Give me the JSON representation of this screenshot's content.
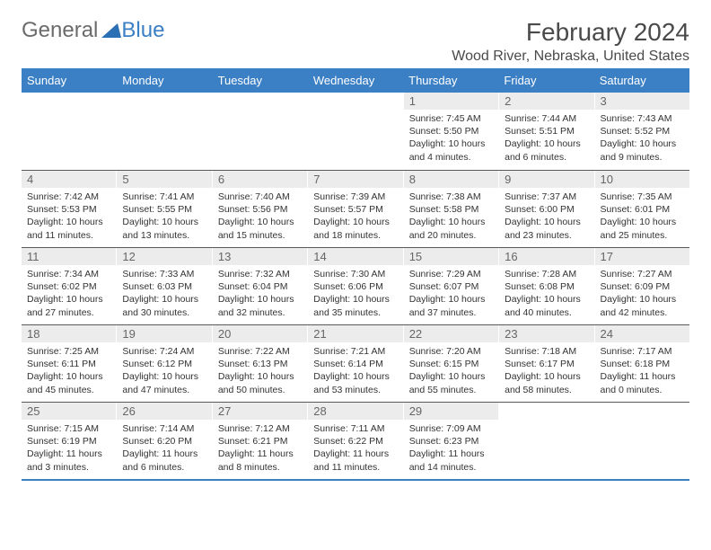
{
  "logo": {
    "text1": "General",
    "text2": "Blue"
  },
  "title": "February 2024",
  "location": "Wood River, Nebraska, United States",
  "colors": {
    "header_bg": "#3b7fc4",
    "header_text": "#ffffff",
    "daynum_bg": "#ececec",
    "daynum_text": "#666666",
    "body_text": "#333333",
    "rule": "#5a5a5a"
  },
  "weekdays": [
    "Sunday",
    "Monday",
    "Tuesday",
    "Wednesday",
    "Thursday",
    "Friday",
    "Saturday"
  ],
  "weeks": [
    [
      null,
      null,
      null,
      null,
      {
        "d": "1",
        "sunrise": "7:45 AM",
        "sunset": "5:50 PM",
        "daylight": "10 hours and 4 minutes."
      },
      {
        "d": "2",
        "sunrise": "7:44 AM",
        "sunset": "5:51 PM",
        "daylight": "10 hours and 6 minutes."
      },
      {
        "d": "3",
        "sunrise": "7:43 AM",
        "sunset": "5:52 PM",
        "daylight": "10 hours and 9 minutes."
      }
    ],
    [
      {
        "d": "4",
        "sunrise": "7:42 AM",
        "sunset": "5:53 PM",
        "daylight": "10 hours and 11 minutes."
      },
      {
        "d": "5",
        "sunrise": "7:41 AM",
        "sunset": "5:55 PM",
        "daylight": "10 hours and 13 minutes."
      },
      {
        "d": "6",
        "sunrise": "7:40 AM",
        "sunset": "5:56 PM",
        "daylight": "10 hours and 15 minutes."
      },
      {
        "d": "7",
        "sunrise": "7:39 AM",
        "sunset": "5:57 PM",
        "daylight": "10 hours and 18 minutes."
      },
      {
        "d": "8",
        "sunrise": "7:38 AM",
        "sunset": "5:58 PM",
        "daylight": "10 hours and 20 minutes."
      },
      {
        "d": "9",
        "sunrise": "7:37 AM",
        "sunset": "6:00 PM",
        "daylight": "10 hours and 23 minutes."
      },
      {
        "d": "10",
        "sunrise": "7:35 AM",
        "sunset": "6:01 PM",
        "daylight": "10 hours and 25 minutes."
      }
    ],
    [
      {
        "d": "11",
        "sunrise": "7:34 AM",
        "sunset": "6:02 PM",
        "daylight": "10 hours and 27 minutes."
      },
      {
        "d": "12",
        "sunrise": "7:33 AM",
        "sunset": "6:03 PM",
        "daylight": "10 hours and 30 minutes."
      },
      {
        "d": "13",
        "sunrise": "7:32 AM",
        "sunset": "6:04 PM",
        "daylight": "10 hours and 32 minutes."
      },
      {
        "d": "14",
        "sunrise": "7:30 AM",
        "sunset": "6:06 PM",
        "daylight": "10 hours and 35 minutes."
      },
      {
        "d": "15",
        "sunrise": "7:29 AM",
        "sunset": "6:07 PM",
        "daylight": "10 hours and 37 minutes."
      },
      {
        "d": "16",
        "sunrise": "7:28 AM",
        "sunset": "6:08 PM",
        "daylight": "10 hours and 40 minutes."
      },
      {
        "d": "17",
        "sunrise": "7:27 AM",
        "sunset": "6:09 PM",
        "daylight": "10 hours and 42 minutes."
      }
    ],
    [
      {
        "d": "18",
        "sunrise": "7:25 AM",
        "sunset": "6:11 PM",
        "daylight": "10 hours and 45 minutes."
      },
      {
        "d": "19",
        "sunrise": "7:24 AM",
        "sunset": "6:12 PM",
        "daylight": "10 hours and 47 minutes."
      },
      {
        "d": "20",
        "sunrise": "7:22 AM",
        "sunset": "6:13 PM",
        "daylight": "10 hours and 50 minutes."
      },
      {
        "d": "21",
        "sunrise": "7:21 AM",
        "sunset": "6:14 PM",
        "daylight": "10 hours and 53 minutes."
      },
      {
        "d": "22",
        "sunrise": "7:20 AM",
        "sunset": "6:15 PM",
        "daylight": "10 hours and 55 minutes."
      },
      {
        "d": "23",
        "sunrise": "7:18 AM",
        "sunset": "6:17 PM",
        "daylight": "10 hours and 58 minutes."
      },
      {
        "d": "24",
        "sunrise": "7:17 AM",
        "sunset": "6:18 PM",
        "daylight": "11 hours and 0 minutes."
      }
    ],
    [
      {
        "d": "25",
        "sunrise": "7:15 AM",
        "sunset": "6:19 PM",
        "daylight": "11 hours and 3 minutes."
      },
      {
        "d": "26",
        "sunrise": "7:14 AM",
        "sunset": "6:20 PM",
        "daylight": "11 hours and 6 minutes."
      },
      {
        "d": "27",
        "sunrise": "7:12 AM",
        "sunset": "6:21 PM",
        "daylight": "11 hours and 8 minutes."
      },
      {
        "d": "28",
        "sunrise": "7:11 AM",
        "sunset": "6:22 PM",
        "daylight": "11 hours and 11 minutes."
      },
      {
        "d": "29",
        "sunrise": "7:09 AM",
        "sunset": "6:23 PM",
        "daylight": "11 hours and 14 minutes."
      },
      null,
      null
    ]
  ],
  "labels": {
    "sunrise": "Sunrise:",
    "sunset": "Sunset:",
    "daylight": "Daylight:"
  }
}
